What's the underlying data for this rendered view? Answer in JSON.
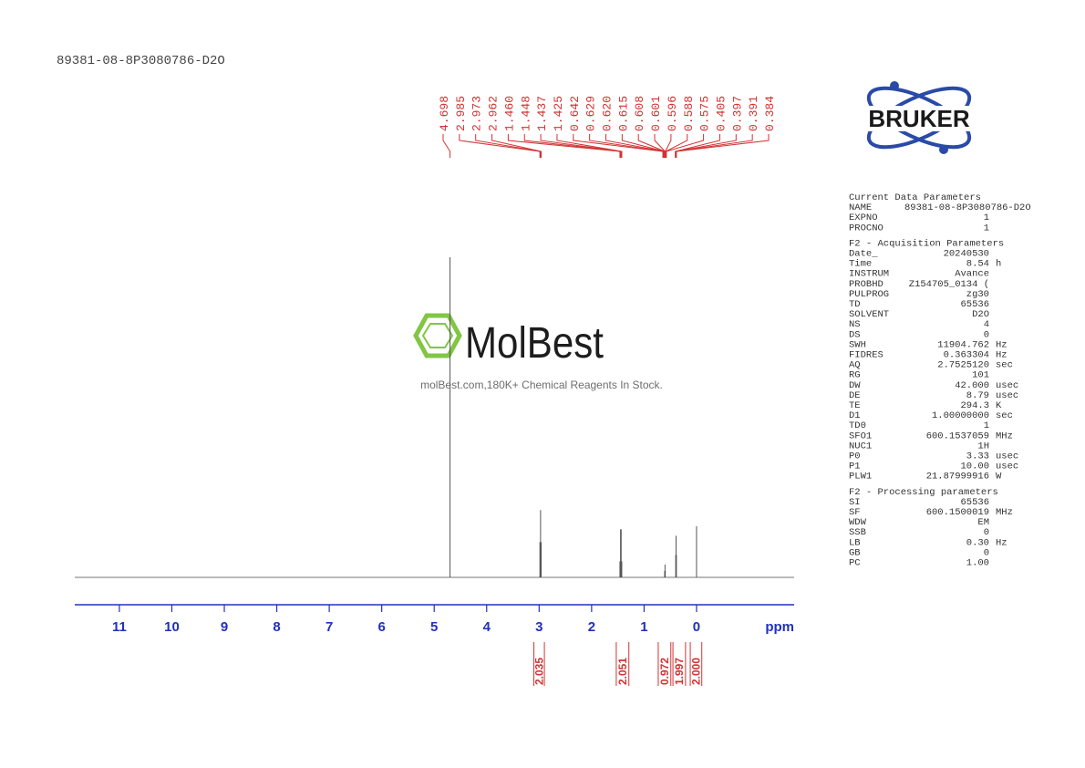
{
  "sample_title": "89381-08-8P3080786-D2O",
  "logo": "BRUKER",
  "watermark": {
    "brand": "MolBest",
    "tagline": "molBest.com,180K+ Chemical Reagents In Stock."
  },
  "parameters": [
    {
      "heading": "Current Data Parameters",
      "rows": [
        [
          "NAME",
          "89381-08-8P3080786-D2O"
        ],
        [
          "EXPNO",
          "1"
        ],
        [
          "PROCNO",
          "1"
        ]
      ]
    },
    {
      "heading": "F2 - Acquisition Parameters",
      "rows": [
        [
          "Date_",
          "20240530"
        ],
        [
          "Time",
          "8.54",
          "h"
        ],
        [
          "INSTRUM",
          "Avance"
        ],
        [
          "PROBHD",
          "Z154705_0134 ("
        ],
        [
          "PULPROG",
          "zg30"
        ],
        [
          "TD",
          "65536"
        ],
        [
          "SOLVENT",
          "D2O"
        ],
        [
          "NS",
          "4"
        ],
        [
          "DS",
          "0"
        ],
        [
          "SWH",
          "11904.762",
          "Hz"
        ],
        [
          "FIDRES",
          "0.363304",
          "Hz"
        ],
        [
          "AQ",
          "2.7525120",
          "sec"
        ],
        [
          "RG",
          "101"
        ],
        [
          "DW",
          "42.000",
          "usec"
        ],
        [
          "DE",
          "8.79",
          "usec"
        ],
        [
          "TE",
          "294.3",
          "K"
        ],
        [
          "D1",
          "1.00000000",
          "sec"
        ],
        [
          "TD0",
          "1"
        ],
        [
          "SFO1",
          "600.1537059",
          "MHz"
        ],
        [
          "NUC1",
          "1H"
        ],
        [
          "P0",
          "3.33",
          "usec"
        ],
        [
          "P1",
          "10.00",
          "usec"
        ],
        [
          "PLW1",
          "21.87999916",
          "W"
        ]
      ]
    },
    {
      "heading": "F2 - Processing parameters",
      "rows": [
        [
          "SI",
          "65536"
        ],
        [
          "SF",
          "600.1500019",
          "MHz"
        ],
        [
          "WDW",
          "EM"
        ],
        [
          "SSB",
          "0"
        ],
        [
          "LB",
          "0.30",
          "Hz"
        ],
        [
          "GB",
          "0"
        ],
        [
          "PC",
          "1.00"
        ]
      ]
    }
  ],
  "chart_data": {
    "type": "nmr",
    "xlabel": "ppm",
    "xlim": [
      11.85,
      -1.86
    ],
    "xticks": [
      11,
      10,
      9,
      8,
      7,
      6,
      5,
      4,
      3,
      2,
      1,
      0
    ],
    "ylim": [
      0,
      100
    ],
    "series": [
      {
        "name": "1H",
        "color": "#555555",
        "x": [
          4.698,
          2.985,
          2.973,
          2.962,
          1.46,
          1.448,
          1.437,
          1.425,
          0.608,
          0.601,
          0.596,
          0.397,
          0.391,
          0.384,
          0
        ],
        "values": [
          100,
          11,
          21,
          11,
          5,
          15,
          15,
          5,
          2,
          4,
          2,
          7,
          13,
          7,
          16
        ]
      }
    ],
    "peaks": {
      "color": "#d23232",
      "values": [
        4.698,
        2.985,
        2.973,
        2.962,
        1.46,
        1.448,
        1.437,
        1.425,
        0.642,
        0.629,
        0.62,
        0.615,
        0.608,
        0.601,
        0.596,
        0.588,
        0.575,
        0.405,
        0.397,
        0.391,
        0.384
      ],
      "value_labels": [
        "4.698",
        "2.985",
        "2.973",
        "2.962",
        "1.460",
        "1.448",
        "1.437",
        "1.425",
        "0.642",
        "0.629",
        "0.620",
        "0.615",
        "0.608",
        "0.601",
        "0.596",
        "0.588",
        "0.575",
        "0.405",
        "0.397",
        "0.391",
        "0.384"
      ]
    },
    "integrals": {
      "values": [
        2.035,
        2.051,
        0.972,
        1.997,
        2.0
      ],
      "value_labels": [
        "2.035",
        "2.051",
        "0.972",
        "1.997",
        "2.000"
      ],
      "ranges": [
        [
          3.1,
          2.9
        ],
        [
          1.53,
          1.29
        ],
        [
          0.73,
          0.49
        ],
        [
          0.45,
          0.21
        ],
        [
          0.12,
          -0.1
        ]
      ]
    }
  }
}
